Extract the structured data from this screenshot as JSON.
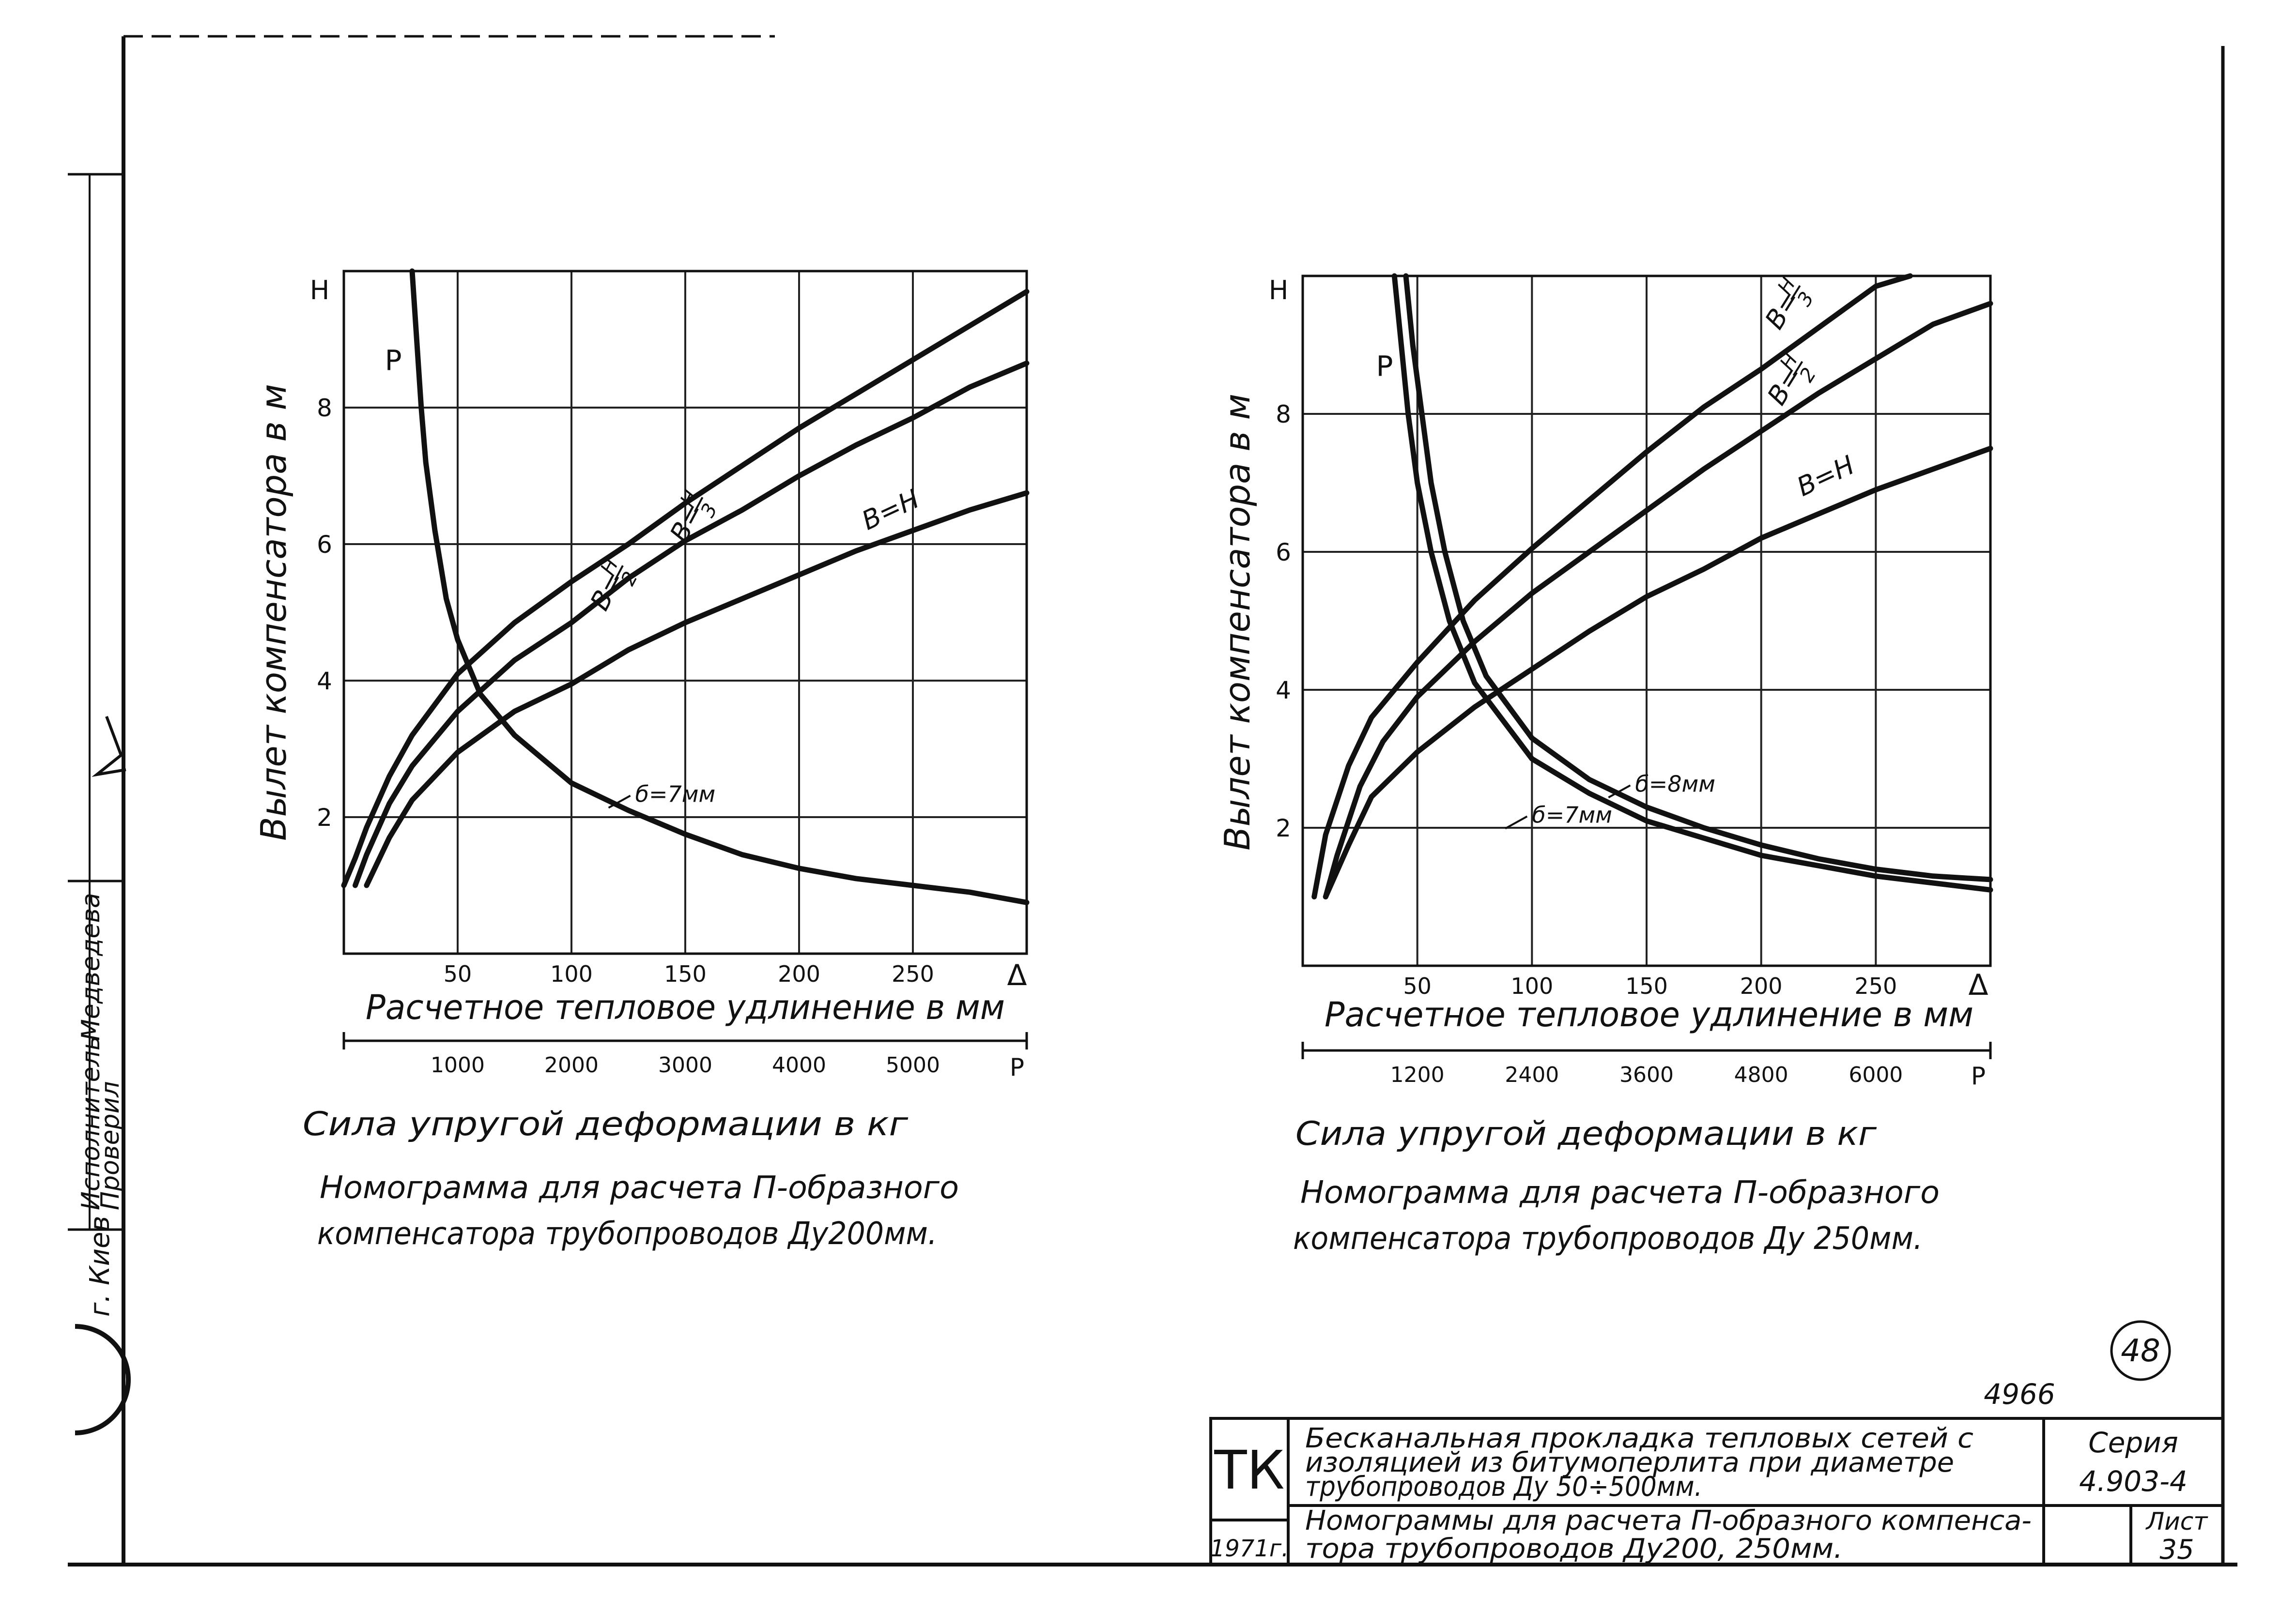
{
  "sheet": {
    "side_stamp": {
      "city": "г. Киев",
      "role_executor": "Исполнитель",
      "role_checker": "Проверил",
      "executor_name": "Медведева"
    },
    "page_circle_number": "48",
    "doc_number": "4966"
  },
  "title_block": {
    "org": "ТК",
    "year": "1971г.",
    "subject_line1": "Бесканальная прокладка тепловых сетей с",
    "subject_line2": "изоляцией из битумоперлита при диаметре",
    "subject_line3": "трубопроводов Ду 50÷500мм.",
    "sheet_title_line1": "Номограммы для расчета П-образного компенса-",
    "sheet_title_line2": "тора трубопроводов Ду200, 250мм.",
    "series_label": "Серия",
    "series_value": "4.903-4",
    "sheet_label": "Лист",
    "sheet_value": "35"
  },
  "chart_data": [
    {
      "type": "line",
      "title": "Номограмма для расчета П-образного компенсатора трубопроводов Ду200мм.",
      "caption_line1": "Номограмма для расчета П-образного",
      "caption_line2": "компенсатора трубопроводов Ду200мм.",
      "xlabel": "Расчетное тепловое удлинение в мм",
      "x_symbol": "Δ",
      "ylabel": "Вылет компенсатора в м",
      "y_symbol": "Н",
      "xlim": [
        0,
        300
      ],
      "ylim": [
        0,
        10
      ],
      "x_ticks": [
        50,
        100,
        150,
        200,
        250
      ],
      "y_ticks": [
        2,
        4,
        6,
        8
      ],
      "x_tick_labels": [
        "50",
        "100",
        "150",
        "200",
        "250"
      ],
      "y_tick_labels": [
        "2",
        "4",
        "6",
        "8"
      ],
      "p_axis_label": "Сила упругой деформации в кг",
      "p_symbol": "P",
      "p_ticks": [
        {
          "delta": 50,
          "label": "1000"
        },
        {
          "delta": 100,
          "label": "2000"
        },
        {
          "delta": 150,
          "label": "3000"
        },
        {
          "delta": 200,
          "label": "4000"
        },
        {
          "delta": 250,
          "label": "5000"
        }
      ],
      "series": [
        {
          "name": "В=Н/3",
          "label_head": "В=",
          "label_num": "Н",
          "label_den": "3",
          "points": [
            [
              0,
              1.0
            ],
            [
              5,
              1.4
            ],
            [
              10,
              1.85
            ],
            [
              20,
              2.6
            ],
            [
              30,
              3.2
            ],
            [
              50,
              4.1
            ],
            [
              75,
              4.85
            ],
            [
              100,
              5.45
            ],
            [
              125,
              6.0
            ],
            [
              150,
              6.6
            ],
            [
              175,
              7.15
            ],
            [
              200,
              7.7
            ],
            [
              225,
              8.2
            ],
            [
              250,
              8.7
            ],
            [
              275,
              9.2
            ],
            [
              300,
              9.7
            ]
          ]
        },
        {
          "name": "В=Н/2",
          "label_head": "В=",
          "label_num": "Н",
          "label_den": "2",
          "points": [
            [
              5,
              1.0
            ],
            [
              10,
              1.45
            ],
            [
              20,
              2.2
            ],
            [
              30,
              2.75
            ],
            [
              50,
              3.55
            ],
            [
              75,
              4.3
            ],
            [
              100,
              4.85
            ],
            [
              125,
              5.5
            ],
            [
              150,
              6.05
            ],
            [
              175,
              6.5
            ],
            [
              200,
              7.0
            ],
            [
              225,
              7.45
            ],
            [
              250,
              7.85
            ],
            [
              275,
              8.3
            ],
            [
              300,
              8.65
            ]
          ]
        },
        {
          "name": "В=Н",
          "label_head": "В=Н",
          "points": [
            [
              10,
              1.0
            ],
            [
              20,
              1.7
            ],
            [
              30,
              2.25
            ],
            [
              50,
              2.95
            ],
            [
              75,
              3.55
            ],
            [
              100,
              3.95
            ],
            [
              125,
              4.45
            ],
            [
              150,
              4.85
            ],
            [
              175,
              5.2
            ],
            [
              200,
              5.55
            ],
            [
              225,
              5.9
            ],
            [
              250,
              6.2
            ],
            [
              275,
              6.5
            ],
            [
              300,
              6.75
            ]
          ]
        },
        {
          "name": "P (б=7мм)",
          "label": "Р",
          "thickness_label": "б=7мм",
          "points": [
            [
              30,
              10.0
            ],
            [
              32,
              9.0
            ],
            [
              34,
              8.0
            ],
            [
              36,
              7.2
            ],
            [
              40,
              6.2
            ],
            [
              45,
              5.2
            ],
            [
              50,
              4.6
            ],
            [
              60,
              3.8
            ],
            [
              75,
              3.2
            ],
            [
              100,
              2.5
            ],
            [
              125,
              2.1
            ],
            [
              150,
              1.75
            ],
            [
              175,
              1.45
            ],
            [
              200,
              1.25
            ],
            [
              225,
              1.1
            ],
            [
              250,
              1.0
            ],
            [
              275,
              0.9
            ],
            [
              300,
              0.75
            ]
          ]
        }
      ]
    },
    {
      "type": "line",
      "title": "Номограмма для расчета П-образного компенсатора трубопроводов Ду 250мм.",
      "caption_line1": "Номограмма для расчета П-образного",
      "caption_line2": "компенсатора трубопроводов Ду 250мм.",
      "xlabel": "Расчетное тепловое удлинение в мм",
      "x_symbol": "Δ",
      "ylabel": "Вылет компенсатора в м",
      "y_symbol": "Н",
      "xlim": [
        0,
        300
      ],
      "ylim": [
        0,
        10
      ],
      "x_ticks": [
        50,
        100,
        150,
        200,
        250
      ],
      "y_ticks": [
        2,
        4,
        6,
        8
      ],
      "x_tick_labels": [
        "50",
        "100",
        "150",
        "200",
        "250"
      ],
      "y_tick_labels": [
        "2",
        "4",
        "6",
        "8"
      ],
      "p_axis_label": "Сила упругой деформации в кг",
      "p_symbol": "P",
      "p_ticks": [
        {
          "delta": 50,
          "label": "1200"
        },
        {
          "delta": 100,
          "label": "2400"
        },
        {
          "delta": 150,
          "label": "3600"
        },
        {
          "delta": 200,
          "label": "4800"
        },
        {
          "delta": 250,
          "label": "6000"
        }
      ],
      "series": [
        {
          "name": "В=Н/3",
          "label_head": "В=",
          "label_num": "Н",
          "label_den": "3",
          "points": [
            [
              5,
              1.0
            ],
            [
              10,
              1.9
            ],
            [
              20,
              2.9
            ],
            [
              30,
              3.6
            ],
            [
              50,
              4.4
            ],
            [
              75,
              5.3
            ],
            [
              100,
              6.05
            ],
            [
              125,
              6.75
            ],
            [
              150,
              7.45
            ],
            [
              175,
              8.1
            ],
            [
              200,
              8.65
            ],
            [
              225,
              9.25
            ],
            [
              250,
              9.85
            ],
            [
              265,
              10.0
            ]
          ]
        },
        {
          "name": "В=Н/2",
          "label_head": "В=",
          "label_num": "Н",
          "label_den": "2",
          "points": [
            [
              10,
              1.0
            ],
            [
              15,
              1.6
            ],
            [
              25,
              2.6
            ],
            [
              35,
              3.25
            ],
            [
              50,
              3.9
            ],
            [
              75,
              4.7
            ],
            [
              100,
              5.4
            ],
            [
              125,
              6.0
            ],
            [
              150,
              6.6
            ],
            [
              175,
              7.2
            ],
            [
              200,
              7.75
            ],
            [
              225,
              8.3
            ],
            [
              250,
              8.8
            ],
            [
              275,
              9.3
            ],
            [
              300,
              9.6
            ]
          ]
        },
        {
          "name": "В=Н",
          "label_head": "В=Н",
          "points": [
            [
              10,
              1.0
            ],
            [
              20,
              1.75
            ],
            [
              30,
              2.45
            ],
            [
              50,
              3.1
            ],
            [
              75,
              3.75
            ],
            [
              100,
              4.3
            ],
            [
              125,
              4.85
            ],
            [
              150,
              5.35
            ],
            [
              175,
              5.75
            ],
            [
              200,
              6.2
            ],
            [
              225,
              6.55
            ],
            [
              250,
              6.9
            ],
            [
              275,
              7.2
            ],
            [
              300,
              7.5
            ]
          ]
        },
        {
          "name": "P (б=8мм)",
          "label": "Р",
          "thickness_label": "б=8мм",
          "points": [
            [
              45,
              10.0
            ],
            [
              48,
              9.0
            ],
            [
              52,
              8.0
            ],
            [
              56,
              7.0
            ],
            [
              62,
              6.0
            ],
            [
              70,
              5.0
            ],
            [
              80,
              4.2
            ],
            [
              100,
              3.3
            ],
            [
              125,
              2.7
            ],
            [
              150,
              2.3
            ],
            [
              175,
              2.0
            ],
            [
              200,
              1.75
            ],
            [
              225,
              1.55
            ],
            [
              250,
              1.4
            ],
            [
              275,
              1.3
            ],
            [
              300,
              1.25
            ]
          ]
        },
        {
          "name": "P (б=7мм)",
          "label": "",
          "thickness_label": "б=7мм",
          "points": [
            [
              40,
              10.0
            ],
            [
              43,
              9.0
            ],
            [
              46,
              8.0
            ],
            [
              50,
              7.0
            ],
            [
              56,
              6.0
            ],
            [
              64,
              5.0
            ],
            [
              75,
              4.1
            ],
            [
              100,
              3.0
            ],
            [
              125,
              2.5
            ],
            [
              150,
              2.1
            ],
            [
              175,
              1.85
            ],
            [
              200,
              1.6
            ],
            [
              225,
              1.45
            ],
            [
              250,
              1.3
            ],
            [
              275,
              1.2
            ],
            [
              300,
              1.1
            ]
          ]
        }
      ]
    }
  ]
}
